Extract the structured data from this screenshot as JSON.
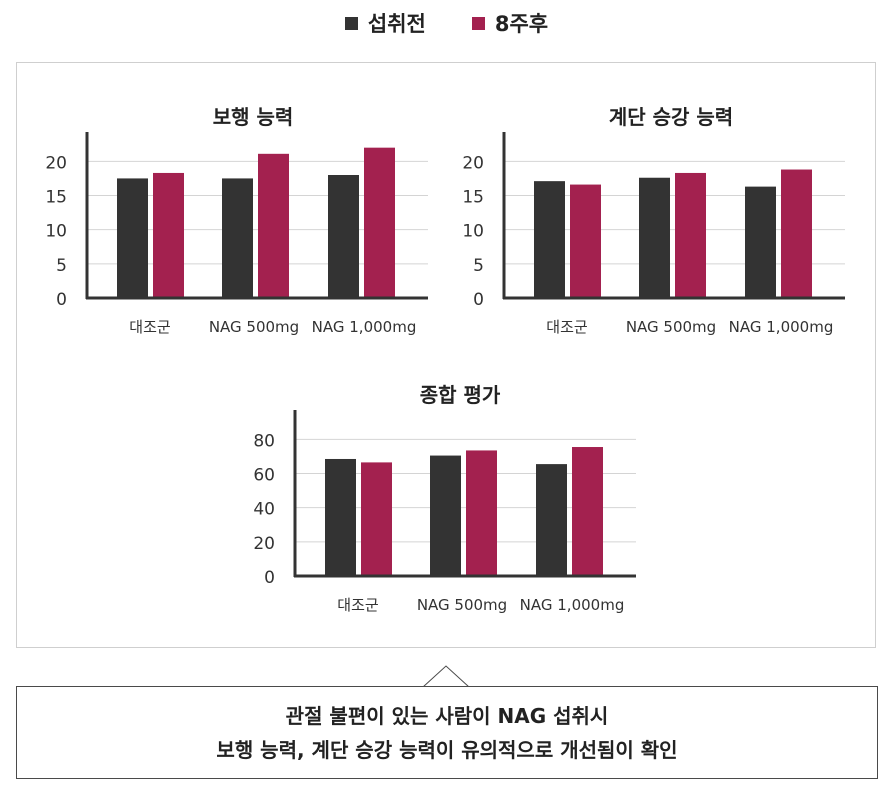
{
  "legend": [
    {
      "label": "섭취전",
      "color": "#333333"
    },
    {
      "label": "8주후",
      "color": "#a3214f"
    }
  ],
  "chart_data": [
    {
      "type": "bar",
      "title": "보행 능력",
      "categories": [
        "대조군",
        "NAG 500mg",
        "NAG 1,000mg"
      ],
      "series": [
        {
          "name": "섭취전",
          "values": [
            17.5,
            17.5,
            18.0
          ]
        },
        {
          "name": "8주후",
          "values": [
            18.3,
            21.1,
            22.0
          ]
        }
      ],
      "yticks": [
        0,
        5,
        10,
        15,
        20
      ],
      "ylim": [
        0,
        24
      ],
      "grid": true
    },
    {
      "type": "bar",
      "title": "계단 승강 능력",
      "categories": [
        "대조군",
        "NAG 500mg",
        "NAG 1,000mg"
      ],
      "series": [
        {
          "name": "섭취전",
          "values": [
            17.1,
            17.6,
            16.3
          ]
        },
        {
          "name": "8주후",
          "values": [
            16.6,
            18.3,
            18.8
          ]
        }
      ],
      "yticks": [
        0,
        5,
        10,
        15,
        20
      ],
      "ylim": [
        0,
        24
      ],
      "grid": true
    },
    {
      "type": "bar",
      "title": "종합 평가",
      "categories": [
        "대조군",
        "NAG 500mg",
        "NAG 1,000mg"
      ],
      "series": [
        {
          "name": "섭취전",
          "values": [
            68.5,
            70.5,
            65.5
          ]
        },
        {
          "name": "8주후",
          "values": [
            66.5,
            73.5,
            75.5
          ]
        }
      ],
      "yticks": [
        0,
        20,
        40,
        60,
        80
      ],
      "ylim": [
        0,
        96
      ],
      "grid": true
    }
  ],
  "note": {
    "line1": "관절 불편이 있는 사람이 NAG 섭취시",
    "line2": "보행 능력, 계단 승강 능력이 유의적으로 개선됨이 확인"
  }
}
